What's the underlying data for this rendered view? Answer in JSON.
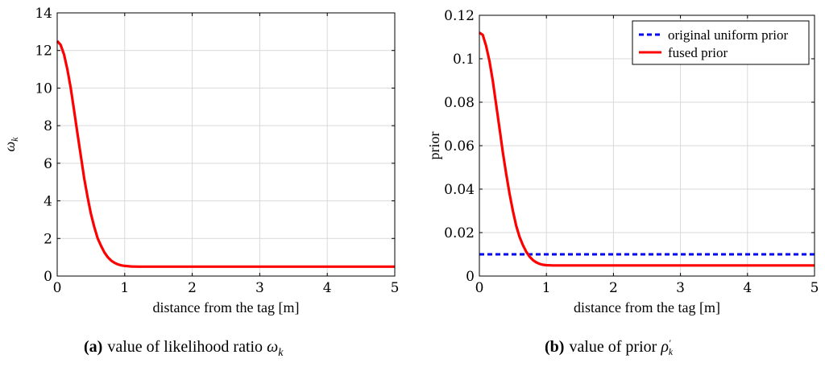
{
  "chart_data": [
    {
      "type": "line",
      "id": "a",
      "xlabel": "distance from the tag [m]",
      "ylabel": "ω",
      "ylabel_sub": "k",
      "xlim": [
        0,
        5
      ],
      "ylim": [
        0,
        14
      ],
      "xticks": [
        0,
        1,
        2,
        3,
        4,
        5
      ],
      "yticks": [
        0,
        2,
        4,
        6,
        8,
        10,
        12,
        14
      ],
      "ytick_labels": [
        "0",
        "2",
        "4",
        "6",
        "8",
        "10",
        "12",
        "14"
      ],
      "grid": true,
      "series": [
        {
          "name": "likelihood ratio",
          "color": "#ff0000",
          "style": "solid",
          "x": [
            0,
            0.05,
            0.1,
            0.15,
            0.2,
            0.25,
            0.3,
            0.35,
            0.4,
            0.45,
            0.5,
            0.55,
            0.6,
            0.65,
            0.7,
            0.75,
            0.8,
            0.85,
            0.9,
            0.95,
            1.0,
            1.1,
            1.2,
            1.3,
            1.4,
            1.5,
            2,
            3,
            4,
            5
          ],
          "y": [
            12.5,
            12.3,
            11.8,
            11.0,
            10.0,
            8.8,
            7.6,
            6.4,
            5.2,
            4.2,
            3.3,
            2.6,
            2.0,
            1.6,
            1.25,
            1.0,
            0.82,
            0.7,
            0.62,
            0.57,
            0.54,
            0.51,
            0.5,
            0.5,
            0.5,
            0.5,
            0.5,
            0.5,
            0.5,
            0.5
          ]
        }
      ],
      "caption_label": "(a)",
      "caption_text": "value of likelihood ratio",
      "caption_symbol": "ω",
      "caption_sub": "k"
    },
    {
      "type": "line",
      "id": "b",
      "xlabel": "distance from the tag [m]",
      "ylabel": "prior",
      "xlim": [
        0,
        5
      ],
      "ylim": [
        0,
        0.12
      ],
      "xticks": [
        0,
        1,
        2,
        3,
        4,
        5
      ],
      "yticks": [
        0,
        0.02,
        0.04,
        0.06,
        0.08,
        0.1,
        0.12
      ],
      "ytick_labels": [
        "0",
        "0.02",
        "0.04",
        "0.06",
        "0.08",
        "0.1",
        "0.12"
      ],
      "grid": true,
      "legend_position": "top-right",
      "series": [
        {
          "name": "original uniform prior",
          "color": "#0000ff",
          "style": "dashed",
          "x": [
            0,
            5
          ],
          "y": [
            0.01,
            0.01
          ]
        },
        {
          "name": "fused prior",
          "color": "#ff0000",
          "style": "solid",
          "x": [
            0,
            0.05,
            0.1,
            0.15,
            0.2,
            0.25,
            0.3,
            0.35,
            0.4,
            0.45,
            0.5,
            0.55,
            0.6,
            0.65,
            0.7,
            0.75,
            0.8,
            0.85,
            0.9,
            0.95,
            1.0,
            1.1,
            1.2,
            1.3,
            1.4,
            1.5,
            2,
            3,
            4,
            5
          ],
          "y": [
            0.112,
            0.111,
            0.106,
            0.099,
            0.09,
            0.079,
            0.068,
            0.057,
            0.047,
            0.038,
            0.03,
            0.023,
            0.018,
            0.0142,
            0.0112,
            0.0089,
            0.0073,
            0.0063,
            0.0056,
            0.0052,
            0.005,
            0.0049,
            0.0049,
            0.0049,
            0.0049,
            0.0049,
            0.0049,
            0.0049,
            0.0049,
            0.0049
          ]
        }
      ],
      "caption_label": "(b)",
      "caption_text": "value of prior",
      "caption_symbol": "ρ",
      "caption_sup": "′",
      "caption_sub": "k"
    }
  ]
}
